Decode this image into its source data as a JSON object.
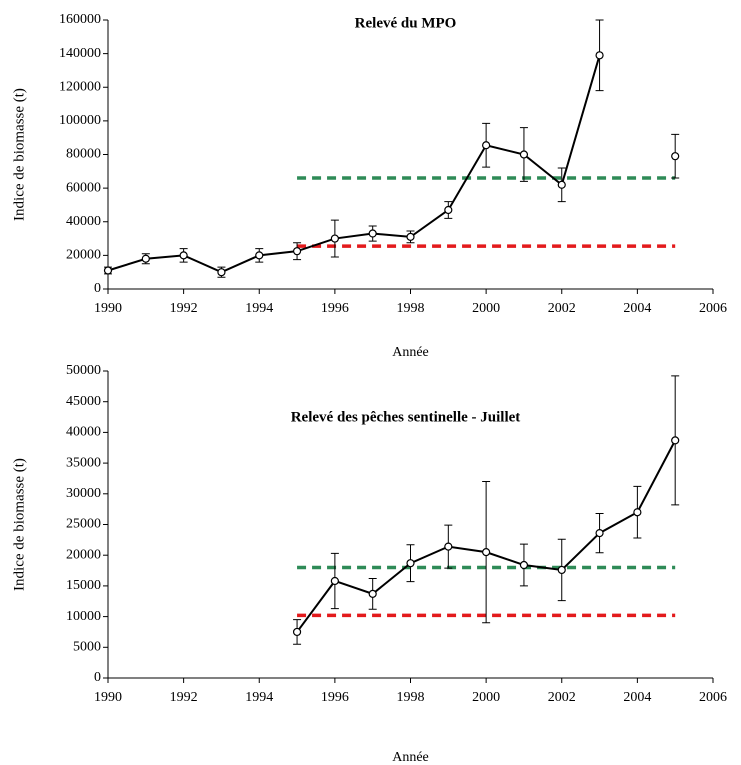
{
  "chart_data": [
    {
      "type": "line",
      "title": "Relevé du MPO",
      "xlabel": "Année",
      "ylabel": "Indice de biomasse (t)",
      "x": [
        1990,
        1991,
        1992,
        1993,
        1994,
        1995,
        1996,
        1997,
        1998,
        1999,
        2000,
        2001,
        2002,
        2003,
        2004,
        2005
      ],
      "series": [
        {
          "color": "#000000",
          "values": [
            11000,
            18000,
            20000,
            10000,
            20000,
            22500,
            30000,
            33000,
            31000,
            47000,
            85500,
            80000,
            62000,
            139000,
            null,
            79000
          ],
          "errors": [
            2000,
            3000,
            4000,
            3000,
            4000,
            5000,
            11000,
            4500,
            3500,
            5000,
            13000,
            16000,
            10000,
            21000,
            null,
            13000
          ]
        }
      ],
      "hlines": [
        {
          "y": 66000,
          "xmin": 1995,
          "xmax": 2005,
          "color": "#2e8b57"
        },
        {
          "y": 25500,
          "xmin": 1995,
          "xmax": 2005,
          "color": "#e31a1c"
        }
      ],
      "xlim": [
        1990,
        2006
      ],
      "xticks": [
        1990,
        1992,
        1994,
        1996,
        1998,
        2000,
        2002,
        2004,
        2006
      ],
      "ylim": [
        0,
        160000
      ],
      "yticks": [
        0,
        20000,
        40000,
        60000,
        80000,
        100000,
        120000,
        140000,
        160000
      ],
      "grid": false
    },
    {
      "type": "line",
      "title": "Relevé des pêches sentinelle - Juillet",
      "xlabel": "Année",
      "ylabel": "Indice de biomasse (t)",
      "x": [
        1995,
        1996,
        1997,
        1998,
        1999,
        2000,
        2001,
        2002,
        2003,
        2004,
        2005
      ],
      "series": [
        {
          "color": "#000000",
          "values": [
            7500,
            15800,
            13700,
            18700,
            21400,
            20500,
            18400,
            17600,
            23600,
            27000,
            38700
          ],
          "errors": [
            2000,
            4500,
            2500,
            3000,
            3500,
            11500,
            3400,
            5000,
            3200,
            4200,
            10500
          ]
        }
      ],
      "hlines": [
        {
          "y": 18000,
          "xmin": 1995,
          "xmax": 2005,
          "color": "#2e8b57"
        },
        {
          "y": 10200,
          "xmin": 1995,
          "xmax": 2005,
          "color": "#e31a1c"
        }
      ],
      "xlim": [
        1990,
        2006
      ],
      "xticks": [
        1990,
        1992,
        1994,
        1996,
        1998,
        2000,
        2002,
        2004,
        2006
      ],
      "ylim": [
        0,
        50000
      ],
      "yticks": [
        0,
        5000,
        10000,
        15000,
        20000,
        25000,
        30000,
        35000,
        40000,
        45000,
        50000
      ],
      "grid": false
    }
  ]
}
